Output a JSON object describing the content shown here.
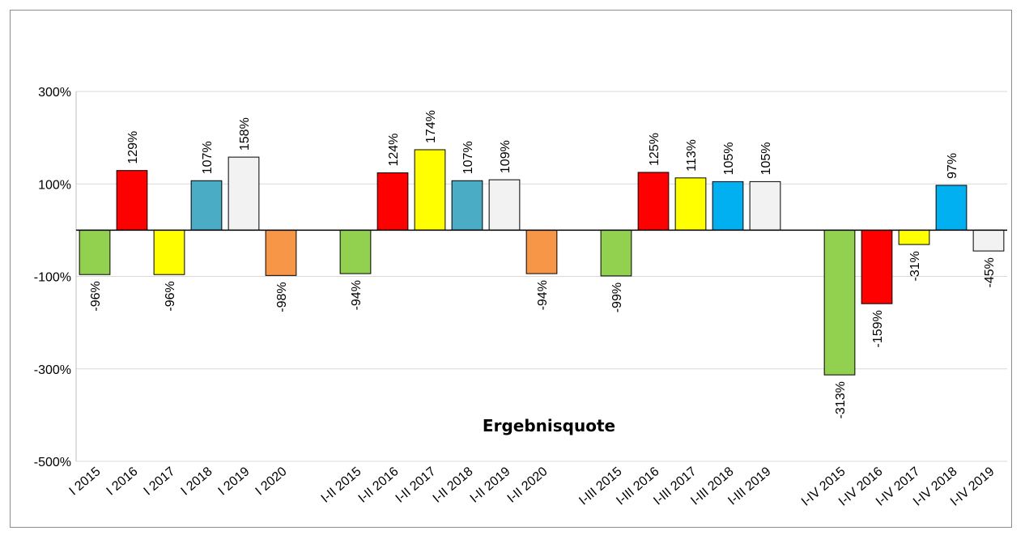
{
  "chart_data": {
    "type": "bar",
    "title": "Ergebnisquote",
    "xlabel": "",
    "ylabel": "",
    "ylim": [
      -500,
      300
    ],
    "yticks": [
      "300%",
      "100%",
      "-100%",
      "-300%",
      "-500%"
    ],
    "ytick_values": [
      300,
      100,
      -100,
      -300,
      -500
    ],
    "grid": true,
    "legend": "none",
    "categories": [
      "I 2015",
      "I 2016",
      "I 2017",
      "I 2018",
      "I 2019",
      "I 2020",
      "I-II 2015",
      "I-II 2016",
      "I-II 2017",
      "I-II 2018",
      "I-II 2019",
      "I-II 2020",
      "I-III 2015",
      "I-III 2016",
      "I-III 2017",
      "I-III 2018",
      "I-III 2019",
      "I-IV 2015",
      "I-IV 2016",
      "I-IV 2017",
      "I-IV 2018",
      "I-IV 2019"
    ],
    "groups": [
      6,
      6,
      5,
      5
    ],
    "values": [
      -96,
      129,
      -96,
      107,
      158,
      -98,
      -94,
      124,
      174,
      107,
      109,
      -94,
      -99,
      125,
      113,
      105,
      105,
      -313,
      -159,
      -31,
      97,
      -45
    ],
    "labels": [
      "-96%",
      "129%",
      "-96%",
      "107%",
      "158%",
      "-98%",
      "-94%",
      "124%",
      "174%",
      "107%",
      "109%",
      "-94%",
      "-99%",
      "125%",
      "113%",
      "105%",
      "105%",
      "-313%",
      "-159%",
      "-31%",
      "97%",
      "-45%"
    ],
    "colors": [
      "#92d050",
      "#ff0000",
      "#ffff00",
      "#4bacc6",
      "#f2f2f2",
      "#f79646",
      "#92d050",
      "#ff0000",
      "#ffff00",
      "#4bacc6",
      "#f2f2f2",
      "#f79646",
      "#92d050",
      "#ff0000",
      "#ffff00",
      "#00b0f0",
      "#f2f2f2",
      "#92d050",
      "#ff0000",
      "#ffff00",
      "#00b0f0",
      "#f2f2f2"
    ]
  }
}
